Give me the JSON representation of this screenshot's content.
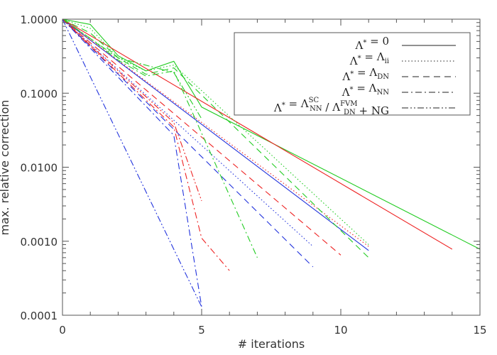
{
  "chart_data": {
    "type": "line",
    "title": "",
    "xlabel": "# iterations",
    "ylabel": "max. relative correction",
    "xlim": [
      0,
      15
    ],
    "ylim": [
      0.0001,
      1.0
    ],
    "yscale": "log",
    "grid": false,
    "legend_position": "top-right",
    "x_ticks": [
      {
        "value": 0,
        "label": "0"
      },
      {
        "value": 5,
        "label": "5"
      },
      {
        "value": 10,
        "label": "10"
      },
      {
        "value": 15,
        "label": "15"
      }
    ],
    "y_ticks": [
      {
        "value": 1.0,
        "label": "1.0000"
      },
      {
        "value": 0.1,
        "label": "0.1000"
      },
      {
        "value": 0.01,
        "label": "0.0100"
      },
      {
        "value": 0.001,
        "label": "0.0010"
      },
      {
        "value": 0.0001,
        "label": "0.0001"
      }
    ],
    "legend": [
      {
        "style": "solid",
        "text": "Λ* = 0"
      },
      {
        "style": "dotted",
        "text": "Λ* = Λ_ii"
      },
      {
        "style": "dashed",
        "text": "Λ* = Λ_DN"
      },
      {
        "style": "dashdot",
        "text": "Λ* = Λ_NN"
      },
      {
        "style": "dashdotdot",
        "text": "Λ* = Λ_NN^SC / Λ_DN^FVM + NG"
      }
    ],
    "colors": {
      "red": "#ee2222",
      "green": "#22cc22",
      "blue": "#2233dd"
    },
    "series": [
      {
        "color": "green",
        "style": "solid",
        "x": [
          0,
          1,
          2,
          3,
          4,
          5,
          15
        ],
        "y": [
          1.0,
          0.85,
          0.32,
          0.2,
          0.27,
          0.065,
          0.00078
        ]
      },
      {
        "color": "red",
        "style": "solid",
        "x": [
          0,
          14
        ],
        "y": [
          1.0,
          0.00078
        ]
      },
      {
        "color": "blue",
        "style": "solid",
        "x": [
          0,
          11
        ],
        "y": [
          1.0,
          0.00075
        ]
      },
      {
        "color": "green",
        "style": "dotted",
        "x": [
          0,
          1,
          2,
          3,
          4,
          11
        ],
        "y": [
          1.0,
          0.75,
          0.3,
          0.2,
          0.24,
          0.0009
        ]
      },
      {
        "color": "red",
        "style": "dotted",
        "x": [
          0,
          11
        ],
        "y": [
          1.0,
          0.00085
        ]
      },
      {
        "color": "blue",
        "style": "dotted",
        "x": [
          0,
          9
        ],
        "y": [
          1.0,
          0.00085
        ]
      },
      {
        "color": "green",
        "style": "dashed",
        "x": [
          0,
          1,
          2,
          3,
          4,
          11
        ],
        "y": [
          1.0,
          0.65,
          0.3,
          0.18,
          0.22,
          0.0006
        ]
      },
      {
        "color": "red",
        "style": "dashed",
        "x": [
          0,
          10
        ],
        "y": [
          1.0,
          0.00065
        ]
      },
      {
        "color": "blue",
        "style": "dashed",
        "x": [
          0,
          9
        ],
        "y": [
          1.0,
          0.00045
        ]
      },
      {
        "color": "green",
        "style": "dashdot",
        "x": [
          0,
          1,
          2,
          3,
          4,
          7
        ],
        "y": [
          1.0,
          0.55,
          0.28,
          0.17,
          0.2,
          0.0006
        ]
      },
      {
        "color": "red",
        "style": "dashdot",
        "x": [
          0,
          4,
          5,
          6
        ],
        "y": [
          1.0,
          0.035,
          0.0011,
          0.0004
        ]
      },
      {
        "color": "blue",
        "style": "dashdot",
        "x": [
          0,
          4,
          5
        ],
        "y": [
          1.0,
          0.027,
          0.00013
        ]
      },
      {
        "color": "green",
        "style": "dashdotdot",
        "x": [
          0,
          2,
          4,
          5
        ],
        "y": [
          1.0,
          0.3,
          0.19,
          0.045
        ]
      },
      {
        "color": "red",
        "style": "dashdotdot",
        "x": [
          0,
          4,
          5
        ],
        "y": [
          1.0,
          0.04,
          0.0035
        ]
      },
      {
        "color": "blue",
        "style": "dashdotdot",
        "x": [
          0,
          5
        ],
        "y": [
          1.0,
          0.00013
        ]
      }
    ]
  }
}
